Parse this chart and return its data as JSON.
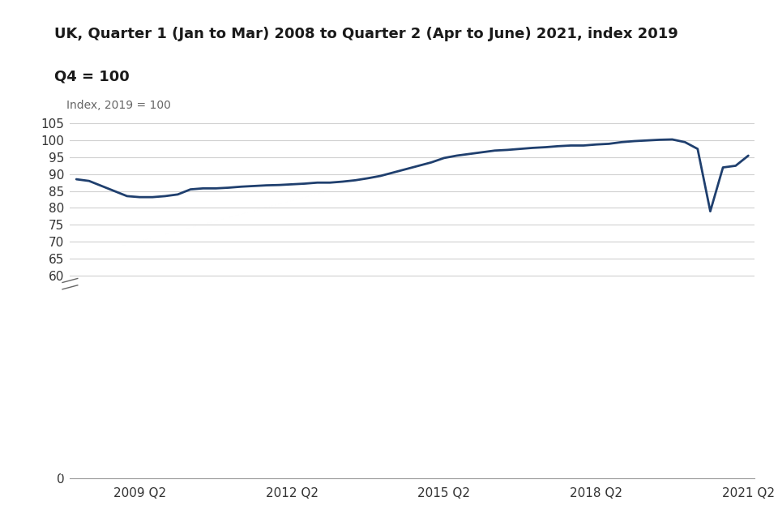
{
  "title": "UK, Quarter 1 (Jan to Mar) 2008 to Quarter 2 (Apr to June) 2021, index 2019",
  "subtitle": "Q4 = 100",
  "ylabel": "Index, 2019 = 100",
  "line_color": "#1f3f6e",
  "line_width": 2.0,
  "background_color": "#ffffff",
  "grid_color": "#d0d0d0",
  "x_tick_labels": [
    "2009 Q2",
    "2012 Q2",
    "2015 Q2",
    "2018 Q2",
    "2021 Q2"
  ],
  "ylim": [
    0,
    107
  ],
  "yticks": [
    0,
    60,
    65,
    70,
    75,
    80,
    85,
    90,
    95,
    100,
    105
  ],
  "values": [
    88.5,
    88.0,
    86.5,
    85.0,
    83.5,
    83.2,
    83.2,
    83.5,
    84.0,
    85.5,
    85.8,
    85.8,
    86.0,
    86.3,
    86.5,
    86.7,
    86.8,
    87.0,
    87.2,
    87.5,
    87.5,
    87.8,
    88.2,
    88.8,
    89.5,
    90.5,
    91.5,
    92.5,
    93.5,
    94.8,
    95.5,
    96.0,
    96.5,
    97.0,
    97.2,
    97.5,
    97.8,
    98.0,
    98.3,
    98.5,
    98.5,
    98.8,
    99.0,
    99.5,
    99.8,
    100.0,
    100.2,
    100.3,
    99.5,
    97.5,
    79.0,
    92.0,
    92.5,
    95.5
  ],
  "x_tick_positions": [
    5,
    17,
    29,
    41,
    53
  ],
  "title_fontsize": 13,
  "subtitle_fontsize": 13,
  "ylabel_fontsize": 10,
  "tick_fontsize": 11
}
